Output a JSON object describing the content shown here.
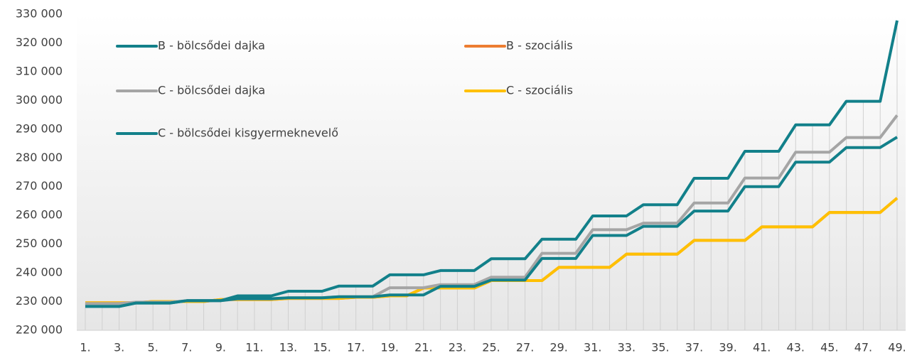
{
  "chart_data": {
    "type": "line",
    "categories": [
      "1.",
      null,
      "3.",
      null,
      "5.",
      null,
      "7.",
      null,
      "9.",
      null,
      "11.",
      null,
      "13.",
      null,
      "15.",
      null,
      "17.",
      null,
      "19.",
      null,
      "21.",
      null,
      "23.",
      null,
      "25.",
      null,
      "27.",
      null,
      "29.",
      null,
      "31.",
      null,
      "33.",
      null,
      "35.",
      null,
      "37.",
      null,
      "39.",
      null,
      "41.",
      null,
      "43.",
      null,
      "45.",
      null,
      "47.",
      null,
      "49."
    ],
    "series": [
      {
        "name": "B - szociális",
        "color": "#ed7d31",
        "values": [
          229600,
          229600,
          229600,
          229600,
          230000,
          230000,
          230000,
          230000,
          230700,
          230700,
          230700,
          230700,
          231100,
          231100,
          231100,
          231100,
          231500,
          231500,
          232000,
          232000,
          234700,
          234700,
          234700,
          234700,
          237300,
          237300,
          237300,
          237300,
          241900,
          241900,
          241900,
          241900,
          246500,
          246500,
          246500,
          246500,
          251300,
          251300,
          251300,
          251300,
          256000,
          256000,
          256000,
          256000,
          261000,
          261000,
          261000,
          261000,
          266000
        ]
      },
      {
        "name": "C - szociális",
        "color": "#ffc000",
        "values": [
          229600,
          229600,
          229600,
          229600,
          230000,
          230000,
          230000,
          230000,
          230700,
          230700,
          230700,
          230700,
          231100,
          231100,
          231100,
          231100,
          231500,
          231500,
          232000,
          232000,
          234700,
          234700,
          234700,
          234700,
          237300,
          237300,
          237300,
          237300,
          241900,
          241900,
          241900,
          241900,
          246500,
          246500,
          246500,
          246500,
          251300,
          251300,
          251300,
          251300,
          256000,
          256000,
          256000,
          256000,
          261000,
          261000,
          261000,
          261000,
          266000
        ]
      },
      {
        "name": "C - bölcsődei dajka",
        "color": "#a5a5a5",
        "values": [
          229300,
          229300,
          229300,
          229800,
          229800,
          229800,
          230300,
          230300,
          230300,
          230900,
          230900,
          230900,
          231300,
          231300,
          231300,
          231700,
          231700,
          231700,
          234800,
          234800,
          234800,
          235900,
          235900,
          235900,
          238500,
          238500,
          238500,
          246800,
          246800,
          246800,
          255000,
          255000,
          255000,
          257300,
          257300,
          257300,
          264300,
          264300,
          264300,
          273000,
          273000,
          273000,
          282000,
          282000,
          282000,
          287100,
          287100,
          287100,
          294800
        ]
      },
      {
        "name": "C - bölcsődei kisgyermeknevelő",
        "color": "#12808a",
        "values": [
          228300,
          228300,
          228300,
          229500,
          229500,
          229500,
          230300,
          230300,
          230300,
          231000,
          231000,
          231000,
          231300,
          231300,
          231300,
          231700,
          231700,
          231700,
          232300,
          232300,
          232300,
          235300,
          235300,
          235300,
          237500,
          237500,
          237500,
          245000,
          245000,
          245000,
          253000,
          253000,
          253000,
          256200,
          256200,
          256200,
          261500,
          261500,
          261500,
          270000,
          270000,
          270000,
          278500,
          278500,
          278500,
          283600,
          283600,
          283600,
          287200
        ]
      },
      {
        "name": "B - bölcsődei dajka",
        "color": "#12808a",
        "values": [
          228300,
          228300,
          228300,
          229500,
          229500,
          229500,
          230300,
          230300,
          230300,
          232000,
          232000,
          232000,
          233600,
          233600,
          233600,
          235400,
          235400,
          235400,
          239300,
          239300,
          239300,
          240800,
          240800,
          240800,
          244900,
          244900,
          244900,
          251700,
          251700,
          251700,
          259800,
          259800,
          259800,
          263700,
          263700,
          263700,
          272900,
          272900,
          272900,
          282300,
          282300,
          282300,
          291500,
          291500,
          291500,
          299700,
          299700,
          299700,
          327800
        ]
      }
    ],
    "legend_order": [
      "B - bölcsődei dajka",
      "B - szociális",
      "C - bölcsődei dajka",
      "C - szociális",
      "C - bölcsődei kisgyermeknevelő"
    ],
    "ylim": [
      220000,
      330000
    ],
    "yticks": [
      {
        "value": 220000,
        "label": "220 000"
      },
      {
        "value": 230000,
        "label": "230 000"
      },
      {
        "value": 240000,
        "label": "240 000"
      },
      {
        "value": 250000,
        "label": "250 000"
      },
      {
        "value": 260000,
        "label": "260 000"
      },
      {
        "value": 270000,
        "label": "270 000"
      },
      {
        "value": 280000,
        "label": "280 000"
      },
      {
        "value": 290000,
        "label": "290 000"
      },
      {
        "value": 300000,
        "label": "300 000"
      },
      {
        "value": 310000,
        "label": "310 000"
      },
      {
        "value": 320000,
        "label": "320 000"
      },
      {
        "value": 330000,
        "label": "330 000"
      }
    ],
    "legend": "upper left"
  }
}
